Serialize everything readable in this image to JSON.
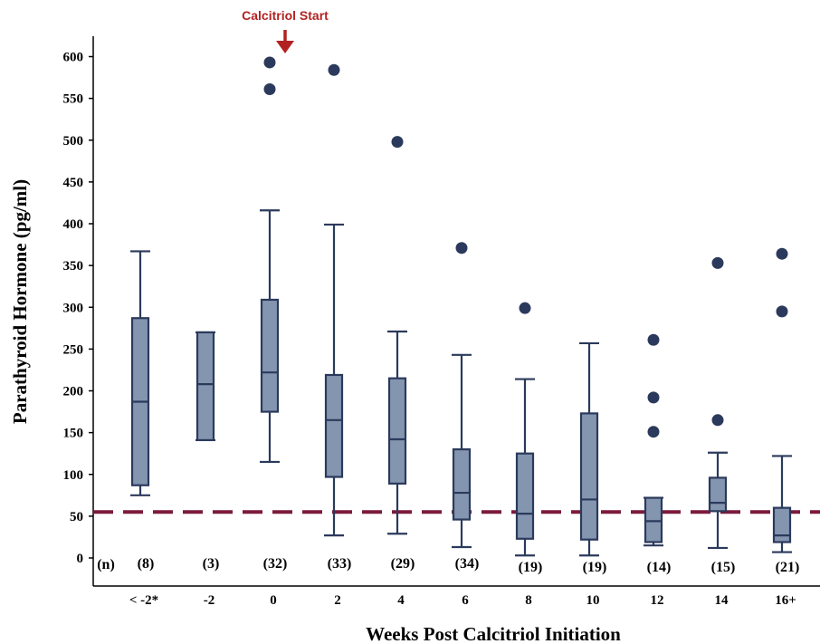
{
  "chart_data": {
    "type": "box",
    "xlabel": "Weeks Post Calcitriol Initiation",
    "ylabel": "Parathyroid Hormone (pg/ml)",
    "ylim": [
      0,
      625
    ],
    "yticks": [
      0,
      50,
      100,
      150,
      200,
      250,
      300,
      350,
      400,
      450,
      500,
      550,
      600
    ],
    "n_header": "(n)",
    "annotation": {
      "text": "Calcitriol Start",
      "at_category": "0",
      "color": "#b22222"
    },
    "reference_line": {
      "value": 55,
      "color": "#7b1a3c",
      "style": "dashed"
    },
    "box_color": "#8495b0",
    "edge_color": "#2b3a5c",
    "categories": [
      {
        "label": "< -2*",
        "n": "(8)",
        "min": 75,
        "q1": 87,
        "median": 187,
        "q3": 287,
        "max": 367,
        "outliers": []
      },
      {
        "label": "-2",
        "n": "(3)",
        "min": 141,
        "q1": 141,
        "median": 208,
        "q3": 270,
        "max": 270,
        "outliers": []
      },
      {
        "label": "0",
        "n": "(32)",
        "min": 115,
        "q1": 175,
        "median": 222,
        "q3": 309,
        "max": 416,
        "outliers": [
          561,
          593
        ]
      },
      {
        "label": "2",
        "n": "(33)",
        "min": 27,
        "q1": 97,
        "median": 165,
        "q3": 219,
        "max": 399,
        "outliers": [
          584
        ]
      },
      {
        "label": "4",
        "n": "(29)",
        "min": 29,
        "q1": 89,
        "median": 142,
        "q3": 215,
        "max": 271,
        "outliers": [
          498
        ]
      },
      {
        "label": "6",
        "n": "(34)",
        "min": 13,
        "q1": 46,
        "median": 78,
        "q3": 130,
        "max": 243,
        "outliers": [
          371
        ]
      },
      {
        "label": "8",
        "n": "(19)",
        "min": 3,
        "q1": 23,
        "median": 53,
        "q3": 125,
        "max": 214,
        "outliers": [
          299
        ]
      },
      {
        "label": "10",
        "n": "(19)",
        "min": 3,
        "q1": 22,
        "median": 70,
        "q3": 173,
        "max": 257,
        "outliers": []
      },
      {
        "label": "12",
        "n": "(14)",
        "min": 15,
        "q1": 19,
        "median": 44,
        "q3": 72,
        "max": 72,
        "outliers": [
          151,
          192,
          261
        ]
      },
      {
        "label": "14",
        "n": "(15)",
        "min": 12,
        "q1": 56,
        "median": 66,
        "q3": 96,
        "max": 126,
        "outliers": [
          165,
          353
        ]
      },
      {
        "label": "16+",
        "n": "(21)",
        "min": 7,
        "q1": 19,
        "median": 27,
        "q3": 60,
        "max": 122,
        "outliers": [
          295,
          364
        ]
      }
    ]
  }
}
